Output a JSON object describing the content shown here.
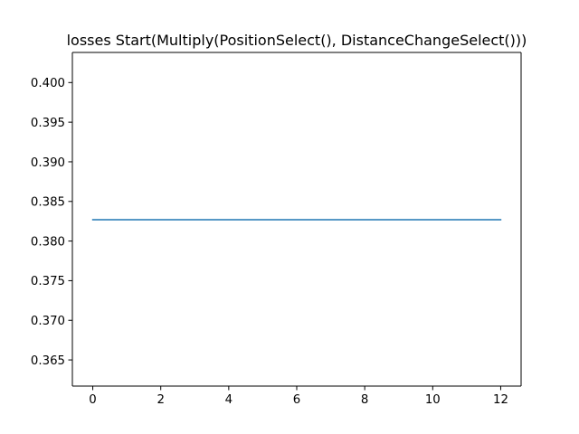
{
  "chart_data": {
    "type": "line",
    "title": "losses Start(Multiply(PositionSelect(), DistanceChangeSelect()))",
    "xlabel": "",
    "ylabel": "",
    "xlim": [
      -0.6,
      12.6
    ],
    "ylim": [
      0.3617,
      0.4038
    ],
    "x_ticks": [
      0,
      2,
      4,
      6,
      8,
      10,
      12
    ],
    "x_tick_labels": [
      "0",
      "2",
      "4",
      "6",
      "8",
      "10",
      "12"
    ],
    "y_ticks": [
      0.365,
      0.37,
      0.375,
      0.38,
      0.385,
      0.39,
      0.395,
      0.4
    ],
    "y_tick_labels": [
      "0.365",
      "0.370",
      "0.375",
      "0.380",
      "0.385",
      "0.390",
      "0.395",
      "0.400"
    ],
    "grid": false,
    "series": [
      {
        "color": "#1f77b4",
        "x": [
          0,
          1,
          2,
          3,
          4,
          5,
          6,
          7,
          8,
          9,
          10,
          11,
          12
        ],
        "y": [
          0.3827,
          0.3827,
          0.3827,
          0.3827,
          0.3827,
          0.3827,
          0.3827,
          0.3827,
          0.3827,
          0.3827,
          0.3827,
          0.3827,
          0.3827
        ]
      }
    ]
  }
}
